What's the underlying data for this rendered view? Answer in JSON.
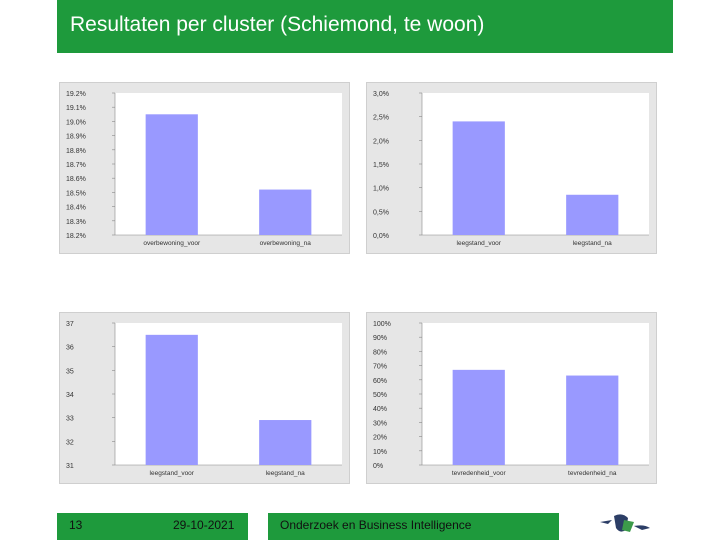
{
  "header": {
    "title": "Resultaten per cluster (Schiemond, te woon)"
  },
  "footer": {
    "page_number": "13",
    "date": "29-10-2021",
    "organization": "Onderzoek en Business Intelligence"
  },
  "colors": {
    "green": "#1e9a3c",
    "bar": "#9999ff"
  },
  "chart_data": [
    {
      "type": "bar",
      "categories": [
        "overbewoning_voor",
        "overbewoning_na"
      ],
      "values": [
        19.05,
        18.52
      ],
      "ylim": [
        18.2,
        19.2
      ],
      "yticks": [
        "18.2%",
        "18.3%",
        "18.4%",
        "18.5%",
        "18.6%",
        "18.7%",
        "18.8%",
        "18.9%",
        "19.0%",
        "19.1%",
        "19.2%"
      ]
    },
    {
      "type": "bar",
      "categories": [
        "leegstand_voor",
        "leegstand_na"
      ],
      "values": [
        2.4,
        0.85
      ],
      "ylim": [
        0,
        3
      ],
      "yticks": [
        "0,0%",
        "0,5%",
        "1,0%",
        "1,5%",
        "2,0%",
        "2,5%",
        "3,0%"
      ]
    },
    {
      "type": "bar",
      "categories": [
        "leegstand_voor",
        "leegstand_na"
      ],
      "values": [
        36.5,
        32.9
      ],
      "ylim": [
        31,
        37
      ],
      "yticks": [
        "31",
        "32",
        "33",
        "34",
        "35",
        "36",
        "37"
      ]
    },
    {
      "type": "bar",
      "categories": [
        "tevredenheid_voor",
        "tevredenheid_na"
      ],
      "values": [
        67,
        63
      ],
      "ylim": [
        0,
        100
      ],
      "yticks": [
        "0%",
        "10%",
        "20%",
        "30%",
        "40%",
        "50%",
        "60%",
        "70%",
        "80%",
        "90%",
        "100%"
      ]
    }
  ]
}
